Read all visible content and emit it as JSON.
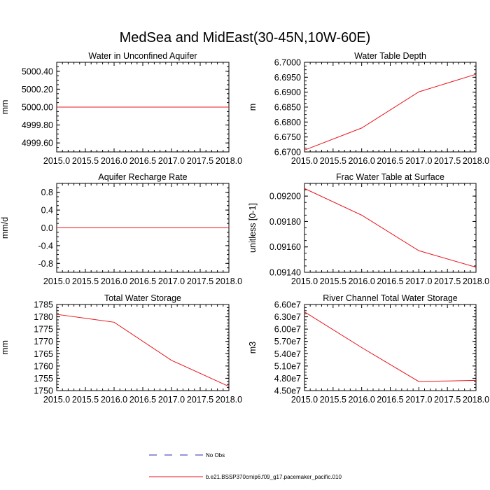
{
  "figure": {
    "title": "MedSea and MidEast(30-45N,10W-60E)"
  },
  "legend": {
    "items": [
      {
        "label": "No Obs",
        "color": "#2b2bb0",
        "style": "dashed"
      },
      {
        "label": "b.e21.BSSP370cmip6.f09_g17.pacemaker_pacific.010",
        "color": "#e8141c",
        "style": "solid"
      }
    ]
  },
  "chart_data": [
    {
      "type": "line",
      "title": "Water in Unconfined Aquifer",
      "ylabel": "mm",
      "xlim": [
        2015.0,
        2018.0
      ],
      "ylim": [
        4999.5,
        5000.5
      ],
      "xticks": [
        2015.0,
        2015.5,
        2016.0,
        2016.5,
        2017.0,
        2017.5,
        2018.0
      ],
      "xtick_labels": [
        "2015.0",
        "2015.5",
        "2016.0",
        "2016.5",
        "2017.0",
        "2017.5",
        "2018.0"
      ],
      "yticks": [
        4999.6,
        4999.8,
        5000.0,
        5000.2,
        5000.4
      ],
      "ytick_labels": [
        "4999.60",
        "4999.80",
        "5000.00",
        "5000.20",
        "5000.40"
      ],
      "series": [
        {
          "color": "#e8141c",
          "x": [
            2015.0,
            2016.0,
            2017.0,
            2018.0
          ],
          "y": [
            5000.0,
            5000.0,
            5000.0,
            5000.0
          ]
        }
      ]
    },
    {
      "type": "line",
      "title": "Water Table Depth",
      "ylabel": "m",
      "xlim": [
        2015.0,
        2018.0
      ],
      "ylim": [
        6.67,
        6.7
      ],
      "xticks": [
        2015.0,
        2015.5,
        2016.0,
        2016.5,
        2017.0,
        2017.5,
        2018.0
      ],
      "xtick_labels": [
        "2015.0",
        "2015.5",
        "2016.0",
        "2016.5",
        "2017.0",
        "2017.5",
        "2018.0"
      ],
      "yticks": [
        6.67,
        6.675,
        6.68,
        6.685,
        6.69,
        6.695,
        6.7
      ],
      "ytick_labels": [
        "6.6700",
        "6.6750",
        "6.6800",
        "6.6850",
        "6.6900",
        "6.6950",
        "6.7000"
      ],
      "series": [
        {
          "color": "#e8141c",
          "x": [
            2015.0,
            2016.0,
            2017.0,
            2018.0
          ],
          "y": [
            6.6706,
            6.678,
            6.6901,
            6.696
          ]
        }
      ]
    },
    {
      "type": "line",
      "title": "Aquifer Recharge Rate",
      "ylabel": "mm/d",
      "xlim": [
        2015.0,
        2018.0
      ],
      "ylim": [
        -1.0,
        1.0
      ],
      "xticks": [
        2015.0,
        2015.5,
        2016.0,
        2016.5,
        2017.0,
        2017.5,
        2018.0
      ],
      "xtick_labels": [
        "2015.0",
        "2015.5",
        "2016.0",
        "2016.5",
        "2017.0",
        "2017.5",
        "2018.0"
      ],
      "yticks": [
        -0.8,
        -0.4,
        0.0,
        0.4,
        0.8
      ],
      "ytick_labels": [
        "-0.8",
        "-0.4",
        "0.0",
        "0.4",
        "0.8"
      ],
      "series": [
        {
          "color": "#e8141c",
          "x": [
            2015.0,
            2016.0,
            2017.0,
            2018.0
          ],
          "y": [
            0.0,
            0.0,
            0.0,
            0.0
          ]
        }
      ]
    },
    {
      "type": "line",
      "title": "Frac Water Table at Surface",
      "ylabel": "unitless [0-1]",
      "xlim": [
        2015.0,
        2018.0
      ],
      "ylim": [
        0.0914,
        0.0921
      ],
      "xticks": [
        2015.0,
        2015.5,
        2016.0,
        2016.5,
        2017.0,
        2017.5,
        2018.0
      ],
      "xtick_labels": [
        "2015.0",
        "2015.5",
        "2016.0",
        "2016.5",
        "2017.0",
        "2017.5",
        "2018.0"
      ],
      "yticks": [
        0.0914,
        0.0916,
        0.0918,
        0.092
      ],
      "ytick_labels": [
        "0.09140",
        "0.09160",
        "0.09180",
        "0.09200"
      ],
      "series": [
        {
          "color": "#e8141c",
          "x": [
            2015.0,
            2016.0,
            2017.0,
            2018.0
          ],
          "y": [
            0.09206,
            0.09185,
            0.09157,
            0.09144
          ]
        }
      ]
    },
    {
      "type": "line",
      "title": "Total Water Storage",
      "ylabel": "mm",
      "xlim": [
        2015.0,
        2018.0
      ],
      "ylim": [
        1750,
        1785
      ],
      "xticks": [
        2015.0,
        2015.5,
        2016.0,
        2016.5,
        2017.0,
        2017.5,
        2018.0
      ],
      "xtick_labels": [
        "2015.0",
        "2015.5",
        "2016.0",
        "2016.5",
        "2017.0",
        "2017.5",
        "2018.0"
      ],
      "yticks": [
        1750,
        1755,
        1760,
        1765,
        1770,
        1775,
        1780,
        1785
      ],
      "ytick_labels": [
        "1750",
        "1755",
        "1760",
        "1765",
        "1770",
        "1775",
        "1780",
        "1785"
      ],
      "series": [
        {
          "color": "#e8141c",
          "x": [
            2015.0,
            2016.0,
            2017.0,
            2018.0
          ],
          "y": [
            1781.0,
            1777.8,
            1762.3,
            1751.7
          ]
        }
      ]
    },
    {
      "type": "line",
      "title": "River Channel Total Water Storage",
      "ylabel": "m3",
      "xlim": [
        2015.0,
        2018.0
      ],
      "ylim": [
        45000000,
        66000000
      ],
      "xticks": [
        2015.0,
        2015.5,
        2016.0,
        2016.5,
        2017.0,
        2017.5,
        2018.0
      ],
      "xtick_labels": [
        "2015.0",
        "2015.5",
        "2016.0",
        "2016.5",
        "2017.0",
        "2017.5",
        "2018.0"
      ],
      "yticks": [
        45000000,
        48000000,
        51000000,
        54000000,
        57000000,
        60000000,
        63000000,
        66000000
      ],
      "ytick_labels": [
        "4.50e7",
        "4.80e7",
        "5.10e7",
        "5.40e7",
        "5.70e7",
        "6.00e7",
        "6.30e7",
        "6.60e7"
      ],
      "series": [
        {
          "color": "#e8141c",
          "x": [
            2015.0,
            2016.0,
            2017.0,
            2018.0
          ],
          "y": [
            64200000,
            55500000,
            47200000,
            47500000
          ]
        }
      ]
    }
  ]
}
